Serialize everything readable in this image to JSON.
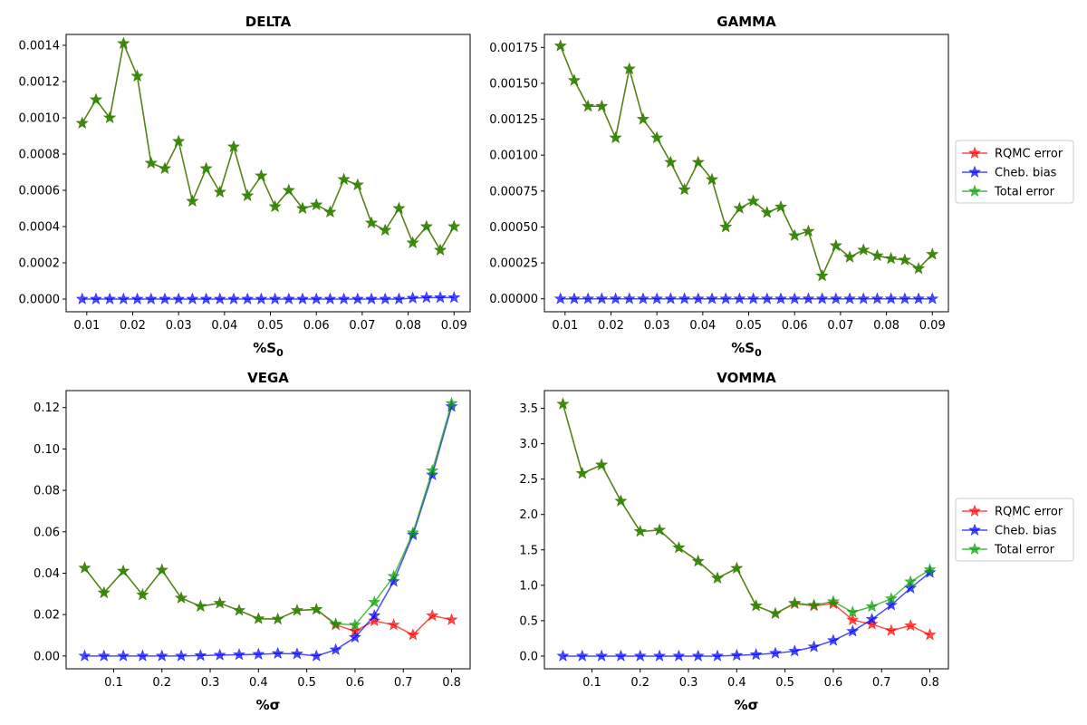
{
  "colors": {
    "rqmc": "#ff0000",
    "cheb": "#0000ff",
    "total": "#00a000",
    "star_edge": "#2f5a00"
  },
  "legend_entries": [
    "RQMC error",
    "Cheb. bias",
    "Total error"
  ],
  "chart_data": [
    {
      "type": "line",
      "title": "DELTA",
      "xlabel": "%S",
      "xlabel_sub": "0",
      "xlim": [
        0.0055,
        0.0935
      ],
      "ylim": [
        -7e-05,
        0.00146
      ],
      "xticks": [
        0.01,
        0.02,
        0.03,
        0.04,
        0.05,
        0.06,
        0.07,
        0.08,
        0.09
      ],
      "xtick_labels": [
        "0.01",
        "0.02",
        "0.03",
        "0.04",
        "0.05",
        "0.06",
        "0.07",
        "0.08",
        "0.09"
      ],
      "yticks": [
        0,
        0.0002,
        0.0004,
        0.0006,
        0.0008,
        0.001,
        0.0012,
        0.0014
      ],
      "ytick_labels": [
        "0.0000",
        "0.0002",
        "0.0004",
        "0.0006",
        "0.0008",
        "0.0010",
        "0.0012",
        "0.0014"
      ],
      "legend": false,
      "x": [
        0.009,
        0.012,
        0.015,
        0.018,
        0.021,
        0.024,
        0.027,
        0.03,
        0.033,
        0.036,
        0.039,
        0.042,
        0.045,
        0.048,
        0.051,
        0.054,
        0.057,
        0.06,
        0.063,
        0.066,
        0.069,
        0.072,
        0.075,
        0.078,
        0.081,
        0.084,
        0.087,
        0.09
      ],
      "series": [
        {
          "name": "RQMC error",
          "key": "rqmc",
          "values": [
            0.00097,
            0.0011,
            0.001,
            0.00141,
            0.00123,
            0.00075,
            0.00072,
            0.00087,
            0.00054,
            0.00072,
            0.00059,
            0.00084,
            0.00057,
            0.00068,
            0.00051,
            0.0006,
            0.0005,
            0.00052,
            0.00048,
            0.00066,
            0.00063,
            0.00042,
            0.00038,
            0.0005,
            0.00031,
            0.0004,
            0.00027,
            0.0004
          ]
        },
        {
          "name": "Cheb. bias",
          "key": "cheb",
          "values": [
            0,
            0,
            0,
            0,
            0,
            0,
            0,
            0,
            0,
            0,
            0,
            0,
            0,
            0,
            0,
            0,
            0,
            0,
            0,
            0,
            0,
            0,
            0,
            0,
            5e-06,
            8e-06,
            8e-06,
            8e-06
          ]
        },
        {
          "name": "Total error",
          "key": "total",
          "values": [
            0.00097,
            0.0011,
            0.001,
            0.00141,
            0.00123,
            0.00075,
            0.00072,
            0.00087,
            0.00054,
            0.00072,
            0.00059,
            0.00084,
            0.00057,
            0.00068,
            0.00051,
            0.0006,
            0.0005,
            0.00052,
            0.00048,
            0.00066,
            0.00063,
            0.00042,
            0.00038,
            0.0005,
            0.00031,
            0.0004,
            0.00027,
            0.0004
          ]
        }
      ]
    },
    {
      "type": "line",
      "title": "GAMMA",
      "xlabel": "%S",
      "xlabel_sub": "0",
      "xlim": [
        0.0055,
        0.0935
      ],
      "ylim": [
        -9e-05,
        0.00184
      ],
      "xticks": [
        0.01,
        0.02,
        0.03,
        0.04,
        0.05,
        0.06,
        0.07,
        0.08,
        0.09
      ],
      "xtick_labels": [
        "0.01",
        "0.02",
        "0.03",
        "0.04",
        "0.05",
        "0.06",
        "0.07",
        "0.08",
        "0.09"
      ],
      "yticks": [
        0,
        0.00025,
        0.0005,
        0.00075,
        0.001,
        0.00125,
        0.0015,
        0.00175
      ],
      "ytick_labels": [
        "0.00000",
        "0.00025",
        "0.00050",
        "0.00075",
        "0.00100",
        "0.00125",
        "0.00150",
        "0.00175"
      ],
      "legend": true,
      "x": [
        0.009,
        0.012,
        0.015,
        0.018,
        0.021,
        0.024,
        0.027,
        0.03,
        0.033,
        0.036,
        0.039,
        0.042,
        0.045,
        0.048,
        0.051,
        0.054,
        0.057,
        0.06,
        0.063,
        0.066,
        0.069,
        0.072,
        0.075,
        0.078,
        0.081,
        0.084,
        0.087,
        0.09
      ],
      "series": [
        {
          "name": "RQMC error",
          "key": "rqmc",
          "values": [
            0.00176,
            0.00152,
            0.00134,
            0.00134,
            0.00112,
            0.0016,
            0.00125,
            0.00112,
            0.00095,
            0.00076,
            0.00095,
            0.00083,
            0.0005,
            0.00063,
            0.00068,
            0.0006,
            0.00064,
            0.00044,
            0.00047,
            0.00016,
            0.00037,
            0.00029,
            0.00034,
            0.0003,
            0.00028,
            0.00027,
            0.00021,
            0.00031
          ]
        },
        {
          "name": "Cheb. bias",
          "key": "cheb",
          "values": [
            0,
            0,
            0,
            0,
            0,
            0,
            0,
            0,
            0,
            0,
            0,
            0,
            0,
            0,
            0,
            0,
            0,
            0,
            0,
            0,
            0,
            0,
            0,
            0,
            0,
            0,
            0,
            0
          ]
        },
        {
          "name": "Total error",
          "key": "total",
          "values": [
            0.00176,
            0.00152,
            0.00134,
            0.00134,
            0.00112,
            0.0016,
            0.00125,
            0.00112,
            0.00095,
            0.00076,
            0.00095,
            0.00083,
            0.0005,
            0.00063,
            0.00068,
            0.0006,
            0.00064,
            0.00044,
            0.00047,
            0.00016,
            0.00037,
            0.00029,
            0.00034,
            0.0003,
            0.00028,
            0.00027,
            0.00021,
            0.00031
          ]
        }
      ]
    },
    {
      "type": "line",
      "title": "VEGA",
      "xlabel": "%σ",
      "xlabel_sub": "",
      "xlim": [
        0.0016,
        0.8384
      ],
      "ylim": [
        -0.0062,
        0.1282
      ],
      "xticks": [
        0.1,
        0.2,
        0.3,
        0.4,
        0.5,
        0.6,
        0.7,
        0.8
      ],
      "xtick_labels": [
        "0.1",
        "0.2",
        "0.3",
        "0.4",
        "0.5",
        "0.6",
        "0.7",
        "0.8"
      ],
      "yticks": [
        0,
        0.02,
        0.04,
        0.06,
        0.08,
        0.1,
        0.12
      ],
      "ytick_labels": [
        "0.00",
        "0.02",
        "0.04",
        "0.06",
        "0.08",
        "0.10",
        "0.12"
      ],
      "legend": false,
      "x": [
        0.04,
        0.08,
        0.12,
        0.16,
        0.2,
        0.24,
        0.28,
        0.32,
        0.36,
        0.4,
        0.44,
        0.48,
        0.52,
        0.56,
        0.6,
        0.64,
        0.68,
        0.72,
        0.76,
        0.8
      ],
      "series": [
        {
          "name": "RQMC error",
          "key": "rqmc",
          "values": [
            0.0425,
            0.0305,
            0.041,
            0.0295,
            0.0415,
            0.028,
            0.024,
            0.0255,
            0.022,
            0.018,
            0.0178,
            0.022,
            0.0225,
            0.015,
            0.012,
            0.017,
            0.015,
            0.0102,
            0.0195,
            0.0175
          ]
        },
        {
          "name": "Cheb. bias",
          "key": "cheb",
          "values": [
            0,
            0,
            0,
            0,
            0,
            0,
            0.0002,
            0.0004,
            0.0006,
            0.0008,
            0.0012,
            0.001,
            0,
            0.003,
            0.009,
            0.0195,
            0.036,
            0.0585,
            0.0875,
            0.1205
          ]
        },
        {
          "name": "Total error",
          "key": "total",
          "values": [
            0.0425,
            0.0305,
            0.041,
            0.0295,
            0.0415,
            0.028,
            0.024,
            0.0255,
            0.022,
            0.018,
            0.0178,
            0.022,
            0.0225,
            0.0155,
            0.015,
            0.026,
            0.0385,
            0.0595,
            0.0895,
            0.122
          ]
        }
      ]
    },
    {
      "type": "line",
      "title": "VOMMA",
      "xlabel": "%σ",
      "xlabel_sub": "",
      "xlim": [
        0.0016,
        0.8384
      ],
      "ylim": [
        -0.18,
        3.75
      ],
      "xticks": [
        0.1,
        0.2,
        0.3,
        0.4,
        0.5,
        0.6,
        0.7,
        0.8
      ],
      "xtick_labels": [
        "0.1",
        "0.2",
        "0.3",
        "0.4",
        "0.5",
        "0.6",
        "0.7",
        "0.8"
      ],
      "yticks": [
        0,
        0.5,
        1.0,
        1.5,
        2.0,
        2.5,
        3.0,
        3.5
      ],
      "ytick_labels": [
        "0.0",
        "0.5",
        "1.0",
        "1.5",
        "2.0",
        "2.5",
        "3.0",
        "3.5"
      ],
      "legend": true,
      "x": [
        0.04,
        0.08,
        0.12,
        0.16,
        0.2,
        0.24,
        0.28,
        0.32,
        0.36,
        0.4,
        0.44,
        0.48,
        0.52,
        0.56,
        0.6,
        0.64,
        0.68,
        0.72,
        0.76,
        0.8
      ],
      "series": [
        {
          "name": "RQMC error",
          "key": "rqmc",
          "values": [
            3.56,
            2.58,
            2.7,
            2.19,
            1.76,
            1.78,
            1.53,
            1.34,
            1.1,
            1.24,
            0.71,
            0.6,
            0.74,
            0.71,
            0.74,
            0.51,
            0.45,
            0.36,
            0.43,
            0.3
          ]
        },
        {
          "name": "Cheb. bias",
          "key": "cheb",
          "values": [
            0,
            0,
            0,
            0,
            0,
            0,
            0,
            0,
            0,
            0.01,
            0.02,
            0.04,
            0.07,
            0.13,
            0.22,
            0.35,
            0.52,
            0.72,
            0.96,
            1.18
          ]
        },
        {
          "name": "Total error",
          "key": "total",
          "values": [
            3.56,
            2.58,
            2.7,
            2.19,
            1.76,
            1.78,
            1.53,
            1.34,
            1.1,
            1.24,
            0.71,
            0.6,
            0.75,
            0.72,
            0.77,
            0.62,
            0.7,
            0.81,
            1.05,
            1.22
          ]
        }
      ]
    }
  ]
}
